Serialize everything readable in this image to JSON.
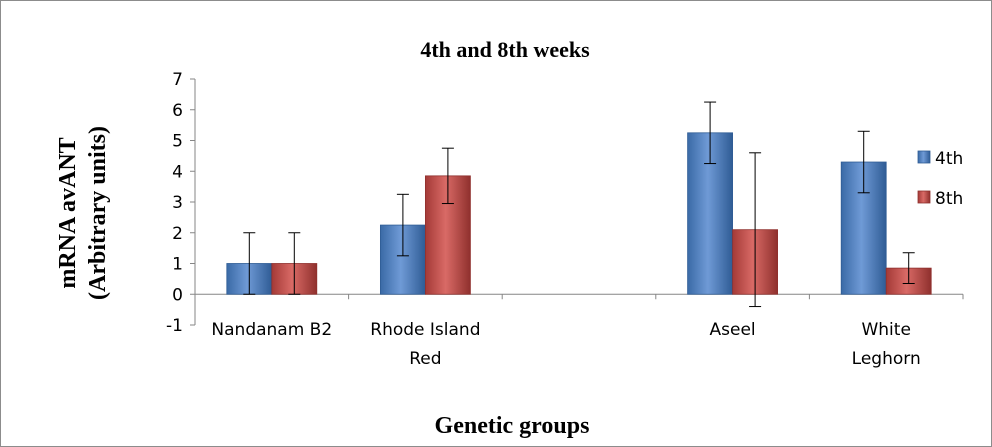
{
  "chart_data": {
    "type": "bar",
    "title": "4th and 8th weeks",
    "xlabel": "Genetic groups",
    "ylabel_line1": "mRNA avANT",
    "ylabel_line2": "(Arbitrary units)",
    "ylim": [
      -1,
      7
    ],
    "yticks": [
      "-1",
      "0",
      "1",
      "2",
      "3",
      "4",
      "5",
      "6",
      "7"
    ],
    "categories": [
      [
        "Nandanam B2"
      ],
      [
        "Rhode Island",
        "Red"
      ],
      [],
      [
        "Aseel"
      ],
      [
        "White",
        "Leghorn"
      ]
    ],
    "series": [
      {
        "name": "4th",
        "color": "#4a7ebb",
        "values": [
          1.0,
          2.25,
          null,
          5.25,
          4.3
        ],
        "errors": [
          1.0,
          1.0,
          null,
          1.0,
          1.0
        ]
      },
      {
        "name": "8th",
        "color": "#be4b48",
        "values": [
          1.0,
          3.85,
          null,
          2.1,
          0.85
        ],
        "errors": [
          1.0,
          0.9,
          null,
          2.5,
          0.5
        ]
      }
    ],
    "grid": false,
    "legend_position": "right"
  }
}
